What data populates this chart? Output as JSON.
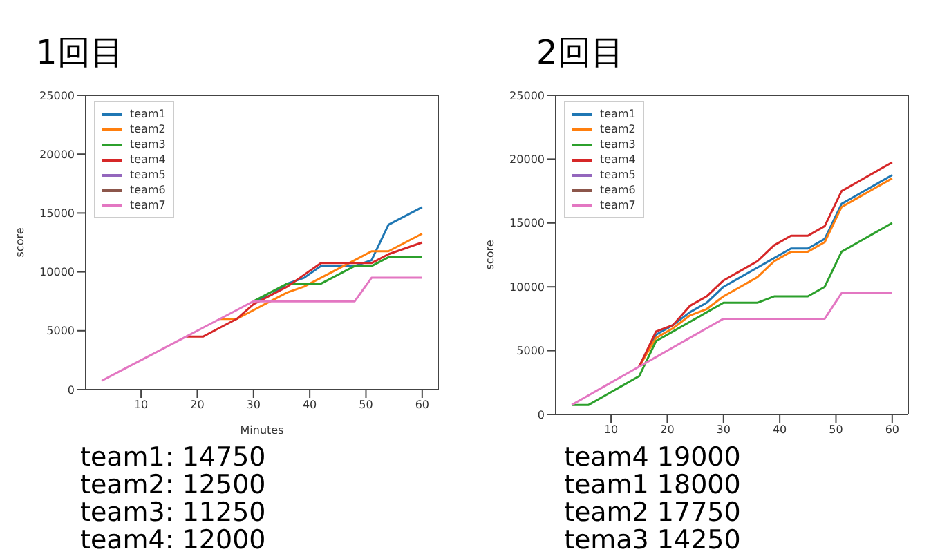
{
  "chart_data": [
    {
      "type": "line",
      "title": "1回目",
      "xlabel": "Minutes",
      "ylabel": "score",
      "x": [
        3,
        6,
        9,
        12,
        15,
        18,
        21,
        24,
        27,
        30,
        33,
        36,
        39,
        42,
        45,
        48,
        51,
        54,
        57,
        60
      ],
      "series": [
        {
          "name": "team1",
          "color": "#1f77b4",
          "values": [
            null,
            null,
            null,
            null,
            null,
            null,
            null,
            null,
            null,
            7500,
            8000,
            9000,
            9500,
            10500,
            10500,
            10500,
            11000,
            14000,
            14750,
            15500
          ]
        },
        {
          "name": "team2",
          "color": "#ff7f0e",
          "values": [
            null,
            null,
            null,
            null,
            null,
            null,
            null,
            6000,
            6000,
            6750,
            7500,
            8250,
            8750,
            9500,
            10250,
            11000,
            11750,
            11750,
            12500,
            13250
          ]
        },
        {
          "name": "team3",
          "color": "#2ca02c",
          "values": [
            null,
            null,
            null,
            null,
            null,
            null,
            null,
            null,
            null,
            7500,
            8250,
            9000,
            9000,
            9000,
            9750,
            10500,
            10500,
            11250,
            11250,
            11250
          ]
        },
        {
          "name": "team4",
          "color": "#d62728",
          "values": [
            null,
            null,
            null,
            null,
            null,
            4500,
            4500,
            5250,
            6000,
            7250,
            8000,
            8750,
            9750,
            10750,
            10750,
            10750,
            10750,
            11500,
            12000,
            12500
          ]
        },
        {
          "name": "team5",
          "color": "#9467bd",
          "values": [
            null,
            null,
            null,
            null,
            null,
            null,
            null,
            null,
            null,
            null,
            null,
            null,
            null,
            null,
            null,
            null,
            null,
            null,
            null,
            null
          ]
        },
        {
          "name": "team6",
          "color": "#8c564b",
          "values": [
            null,
            null,
            null,
            null,
            null,
            null,
            null,
            null,
            null,
            null,
            null,
            null,
            null,
            null,
            null,
            null,
            null,
            null,
            null,
            null
          ]
        },
        {
          "name": "team7",
          "color": "#e377c2",
          "values": [
            750,
            1500,
            2250,
            3000,
            3750,
            4500,
            5250,
            6000,
            6750,
            7500,
            7500,
            7500,
            7500,
            7500,
            7500,
            7500,
            9500,
            9500,
            9500,
            9500
          ]
        }
      ],
      "xlim": [
        0.15,
        62.85
      ],
      "xticks": [
        10,
        20,
        30,
        40,
        50,
        60
      ],
      "ylim": [
        0,
        25000
      ],
      "yticks": [
        0,
        5000,
        10000,
        15000,
        20000,
        25000
      ],
      "legend": "top left",
      "grid": false,
      "annotations": [
        "team1: 14750",
        "team2: 12500",
        "team3: 11250",
        "team4: 12000"
      ]
    },
    {
      "type": "line",
      "title": "2回目",
      "ylabel": "score",
      "x": [
        3,
        6,
        9,
        12,
        15,
        18,
        21,
        24,
        27,
        30,
        33,
        36,
        39,
        42,
        45,
        48,
        51,
        54,
        57,
        60
      ],
      "series": [
        {
          "name": "team1",
          "color": "#1f77b4",
          "values": [
            null,
            null,
            null,
            null,
            3750,
            6250,
            7000,
            8000,
            8750,
            10000,
            10750,
            11500,
            12250,
            13000,
            13000,
            13750,
            16500,
            17250,
            18000,
            18750
          ]
        },
        {
          "name": "team2",
          "color": "#ff7f0e",
          "values": [
            null,
            null,
            null,
            null,
            3750,
            6000,
            6750,
            7750,
            8250,
            9250,
            10000,
            10750,
            12000,
            12750,
            12750,
            13500,
            16250,
            17000,
            17750,
            18500
          ]
        },
        {
          "name": "team3",
          "color": "#2ca02c",
          "values": [
            750,
            750,
            1500,
            2250,
            3000,
            5750,
            6500,
            7250,
            8000,
            8750,
            8750,
            8750,
            9250,
            9250,
            9250,
            10000,
            12750,
            13500,
            14250,
            15000
          ]
        },
        {
          "name": "team4",
          "color": "#d62728",
          "values": [
            null,
            null,
            null,
            null,
            3750,
            6500,
            7000,
            8500,
            9250,
            10500,
            11250,
            12000,
            13250,
            14000,
            14000,
            14750,
            17500,
            18250,
            19000,
            19750
          ]
        },
        {
          "name": "team5",
          "color": "#9467bd",
          "values": [
            null,
            null,
            null,
            null,
            null,
            null,
            null,
            null,
            null,
            null,
            null,
            null,
            null,
            null,
            null,
            null,
            null,
            null,
            null,
            null
          ]
        },
        {
          "name": "team6",
          "color": "#8c564b",
          "values": [
            null,
            null,
            null,
            null,
            null,
            null,
            null,
            null,
            null,
            null,
            null,
            null,
            null,
            null,
            null,
            null,
            null,
            null,
            null,
            null
          ]
        },
        {
          "name": "team7",
          "color": "#e377c2",
          "values": [
            750,
            1500,
            2250,
            3000,
            3750,
            4500,
            5250,
            6000,
            6750,
            7500,
            7500,
            7500,
            7500,
            7500,
            7500,
            7500,
            9500,
            9500,
            9500,
            9500
          ]
        }
      ],
      "xlim": [
        0.15,
        62.85
      ],
      "xticks": [
        10,
        20,
        30,
        40,
        50,
        60
      ],
      "ylim": [
        0,
        25000
      ],
      "yticks": [
        0,
        5000,
        10000,
        15000,
        20000,
        25000
      ],
      "legend": "top left",
      "grid": false,
      "annotations": [
        "team4 19000",
        "team1 18000",
        "team2 17750",
        "tema3 14250"
      ]
    }
  ]
}
